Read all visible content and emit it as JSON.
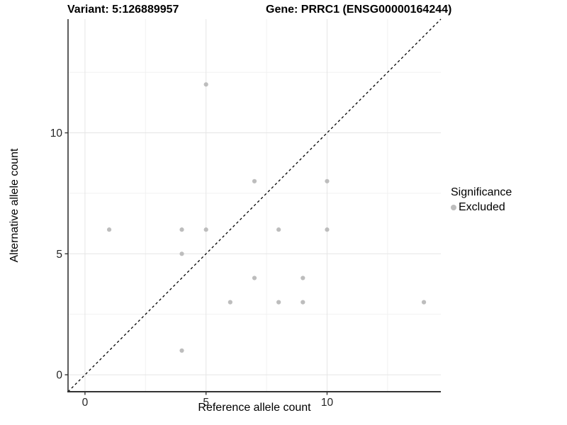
{
  "chart_data": {
    "type": "scatter",
    "titles": {
      "variant": "Variant: 5:126889957",
      "gene": "Gene: PRRC1 (ENSG00000164244)"
    },
    "xlabel": "Reference allele count",
    "ylabel": "Alternative allele count",
    "xlim": [
      -0.7,
      14.7
    ],
    "ylim": [
      -0.7,
      14.7
    ],
    "x_major_ticks": [
      0,
      5,
      10
    ],
    "y_major_ticks": [
      0,
      5,
      10
    ],
    "x_minor_ticks": [
      2.5,
      7.5,
      12.5
    ],
    "y_minor_ticks": [
      2.5,
      7.5,
      12.5
    ],
    "grid": true,
    "reference_line": {
      "type": "identity",
      "style": "dashed",
      "color": "#000000"
    },
    "series": [
      {
        "name": "Excluded",
        "color": "#bdbdbd",
        "points": [
          {
            "x": 1,
            "y": 6
          },
          {
            "x": 4,
            "y": 1
          },
          {
            "x": 4,
            "y": 5
          },
          {
            "x": 4,
            "y": 6
          },
          {
            "x": 5,
            "y": 6
          },
          {
            "x": 5,
            "y": 12
          },
          {
            "x": 6,
            "y": 3
          },
          {
            "x": 7,
            "y": 4
          },
          {
            "x": 7,
            "y": 8
          },
          {
            "x": 8,
            "y": 3
          },
          {
            "x": 8,
            "y": 6
          },
          {
            "x": 9,
            "y": 3
          },
          {
            "x": 9,
            "y": 4
          },
          {
            "x": 10,
            "y": 6
          },
          {
            "x": 10,
            "y": 8
          },
          {
            "x": 14,
            "y": 3
          }
        ]
      }
    ],
    "legend": {
      "title": "Significance",
      "position": "right",
      "items": [
        {
          "label": "Excluded",
          "color": "#bdbdbd"
        }
      ]
    }
  },
  "colors": {
    "grid_major": "#e5e5e5",
    "grid_minor": "#f1f1f1",
    "axis": "#333333",
    "tick_text": "#262626",
    "point": "#bdbdbd",
    "background": "#ffffff"
  }
}
